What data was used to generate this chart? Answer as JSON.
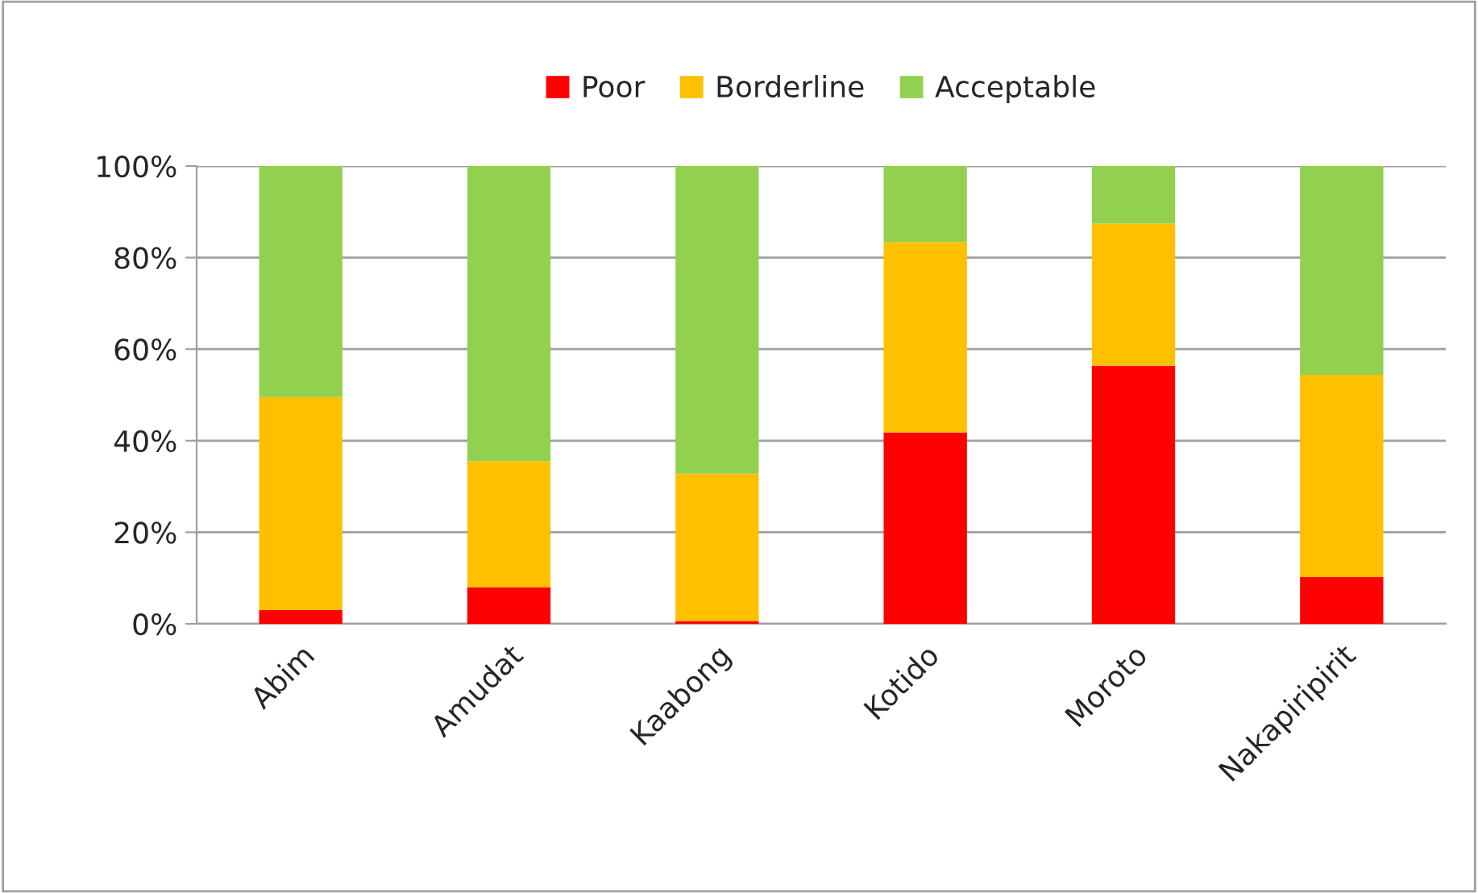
{
  "chart_data": {
    "type": "bar",
    "stacked": true,
    "categories": [
      "Abim",
      "Amudat",
      "Kaabong",
      "Kotido",
      "Moroto",
      "Nakapiripirit"
    ],
    "series": [
      {
        "name": "Poor",
        "color": "#ff0000",
        "values": [
          3,
          8,
          0.6,
          41.8,
          56.4,
          10.2
        ]
      },
      {
        "name": "Borderline",
        "color": "#ffc000",
        "values": [
          46.5,
          27.5,
          32.2,
          41.6,
          31,
          44.2
        ]
      },
      {
        "name": "Acceptable",
        "color": "#92d050",
        "values": [
          50.5,
          64.5,
          67.2,
          16.6,
          12.6,
          45.6
        ]
      }
    ],
    "ylim": [
      0,
      100
    ],
    "yticks": [
      {
        "value": 0,
        "label": "0%"
      },
      {
        "value": 20,
        "label": "20%"
      },
      {
        "value": 40,
        "label": "40%"
      },
      {
        "value": 60,
        "label": "60%"
      },
      {
        "value": 80,
        "label": "80%"
      },
      {
        "value": 100,
        "label": "100%"
      }
    ],
    "grid": "y",
    "legend": "top"
  }
}
